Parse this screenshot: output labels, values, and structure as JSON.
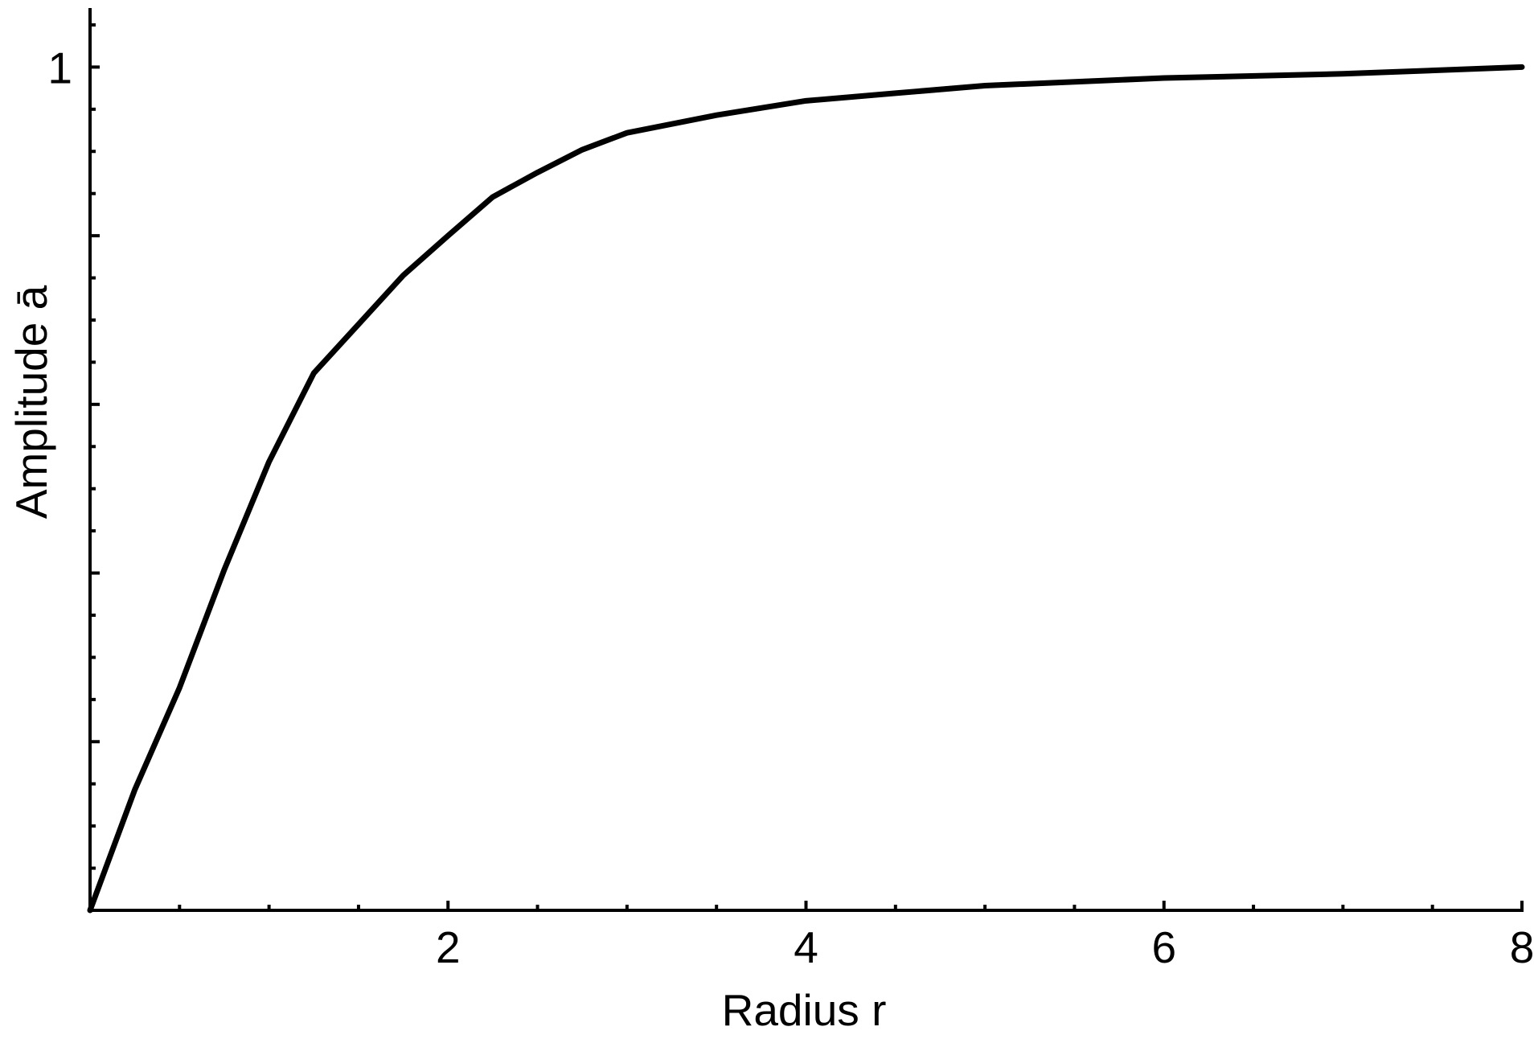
{
  "chart_data": {
    "type": "line",
    "x_label": "Radius r",
    "y_label": "Amplitude ā",
    "x": [
      0,
      0.25,
      0.5,
      0.75,
      1,
      1.25,
      1.5,
      1.75,
      2,
      2.25,
      2.5,
      2.75,
      3,
      3.5,
      4,
      4.5,
      5,
      6,
      7,
      8
    ],
    "series": [
      {
        "color": "#000000",
        "values": [
          0,
          0.143,
          0.264,
          0.404,
          0.532,
          0.637,
          0.695,
          0.753,
          0.8,
          0.846,
          0.875,
          0.902,
          0.922,
          0.943,
          0.96,
          0.969,
          0.978,
          0.987,
          0.992,
          1.0
        ]
      }
    ],
    "xlim": [
      0,
      8
    ],
    "ylim": [
      0,
      1.07
    ],
    "xticks": [
      2,
      4,
      6,
      8
    ],
    "xminorticks": [
      0.5,
      1,
      1.5,
      2.5,
      3,
      3.5,
      4.5,
      5,
      5.5,
      6.5,
      7,
      7.5
    ],
    "yticks": [
      {
        "value": 0.2,
        "label": null
      },
      {
        "value": 0.4,
        "label": null
      },
      {
        "value": 0.6,
        "label": null
      },
      {
        "value": 0.8,
        "label": null
      },
      1
    ],
    "yminorticks": [
      0.05,
      0.1,
      0.15,
      0.25,
      0.3,
      0.35,
      0.45,
      0.5,
      0.55,
      0.65,
      0.7,
      0.75,
      0.85,
      0.9,
      0.95,
      1.05
    ],
    "grid": false
  }
}
